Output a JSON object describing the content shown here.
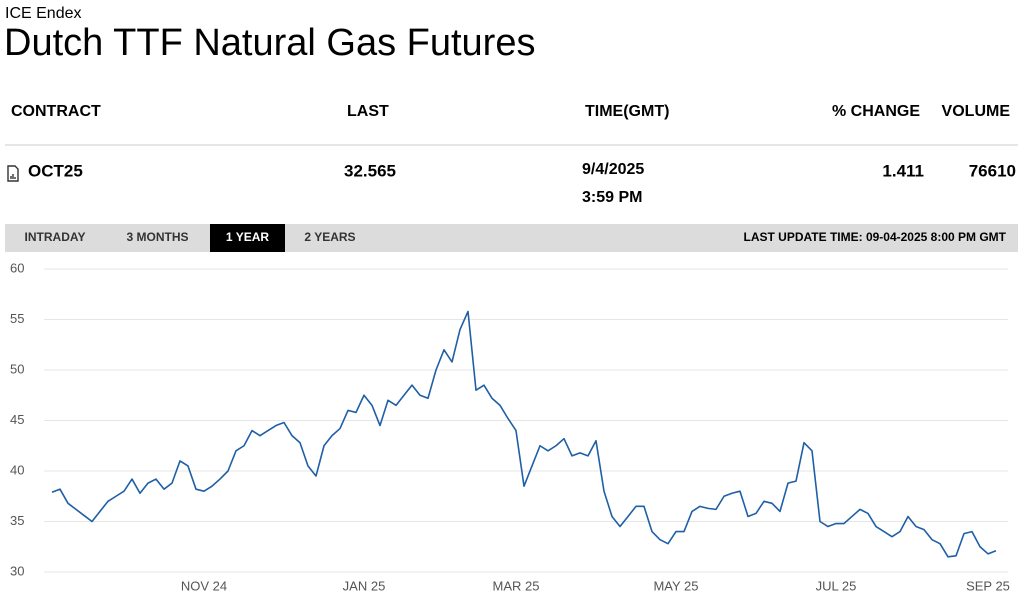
{
  "header": {
    "source": "ICE Endex",
    "title": "Dutch TTF Natural Gas Futures"
  },
  "table": {
    "columns": [
      "CONTRACT",
      "LAST",
      "TIME(GMT)",
      "% CHANGE",
      "VOLUME"
    ],
    "rows": [
      {
        "contract": "OCT25",
        "last": "32.565",
        "date": "9/4/2025",
        "time": "3:59 PM",
        "change": "1.411",
        "volume": "76610"
      }
    ]
  },
  "tabs": {
    "items": [
      "INTRADAY",
      "3 MONTHS",
      "1 YEAR",
      "2 YEARS"
    ],
    "active": 2
  },
  "last_update": "LAST UPDATE TIME: 09-04-2025 8:00 PM GMT",
  "chart_data": {
    "type": "line",
    "color": "#1f5fa6",
    "grid": true,
    "ylim": [
      30,
      60
    ],
    "yticks": [
      30,
      35,
      40,
      45,
      50,
      55,
      60
    ],
    "categories": [
      null,
      null,
      null,
      null,
      null,
      null,
      null,
      null,
      null,
      null,
      null,
      null,
      null,
      null,
      null,
      null,
      null,
      null,
      null,
      "NOV 24",
      null,
      null,
      null,
      null,
      null,
      null,
      null,
      null,
      null,
      null,
      null,
      null,
      null,
      null,
      null,
      null,
      null,
      null,
      null,
      "JAN 25",
      null,
      null,
      null,
      null,
      null,
      null,
      null,
      null,
      null,
      null,
      null,
      null,
      null,
      null,
      null,
      null,
      null,
      null,
      "MAR 25",
      null,
      null,
      null,
      null,
      null,
      null,
      null,
      null,
      null,
      null,
      null,
      null,
      null,
      null,
      null,
      null,
      null,
      null,
      null,
      "MAY 25",
      null,
      null,
      null,
      null,
      null,
      null,
      null,
      null,
      null,
      null,
      null,
      null,
      null,
      null,
      null,
      null,
      null,
      null,
      null,
      "JUL 25",
      null,
      null,
      null,
      null,
      null,
      null,
      null,
      null,
      null,
      null,
      null,
      null,
      null,
      null,
      null,
      null,
      null,
      null,
      "SEP 25",
      null
    ],
    "values": [
      37.9,
      38.2,
      36.8,
      36.2,
      35.6,
      35.0,
      36.0,
      37.0,
      37.5,
      38.0,
      39.2,
      37.8,
      38.8,
      39.2,
      38.2,
      38.8,
      41.0,
      40.5,
      38.2,
      38.0,
      38.5,
      39.2,
      40.0,
      42.0,
      42.5,
      44.0,
      43.5,
      44.0,
      44.5,
      44.8,
      43.5,
      42.8,
      40.5,
      39.5,
      42.5,
      43.5,
      44.2,
      46.0,
      45.8,
      47.5,
      46.5,
      44.5,
      47.0,
      46.5,
      47.5,
      48.5,
      47.5,
      47.2,
      50.0,
      52.0,
      50.8,
      54.0,
      55.8,
      48.0,
      48.5,
      47.2,
      46.5,
      45.2,
      44.0,
      38.5,
      40.5,
      42.5,
      42.0,
      42.5,
      43.2,
      41.5,
      41.8,
      41.5,
      43.0,
      38.0,
      35.5,
      34.5,
      35.5,
      36.5,
      36.5,
      34.0,
      33.2,
      32.8,
      34.0,
      34.0,
      36.0,
      36.5,
      36.3,
      36.2,
      37.5,
      37.8,
      38.0,
      35.5,
      35.8,
      37.0,
      36.8,
      36.0,
      38.8,
      39.0,
      42.8,
      42.0,
      35.0,
      34.5,
      34.8,
      34.8,
      35.5,
      36.2,
      35.8,
      34.5,
      34.0,
      33.5,
      34.0,
      35.5,
      34.5,
      34.2,
      33.2,
      32.8,
      31.5,
      31.6,
      33.8,
      34.0,
      32.5,
      31.8,
      32.1
    ]
  }
}
